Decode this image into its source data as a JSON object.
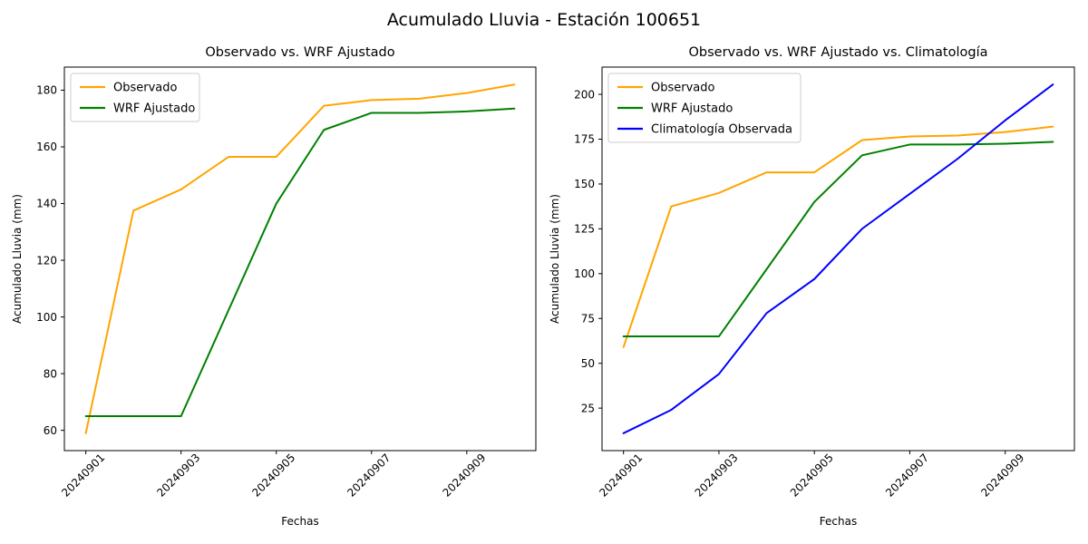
{
  "figure": {
    "title": "Acumulado Lluvia - Estación 100651",
    "background": "#ffffff"
  },
  "chart_data": [
    {
      "type": "line",
      "title": "Observado vs. WRF Ajustado",
      "xlabel": "Fechas",
      "ylabel": "Acumulado Lluvia (mm)",
      "x": [
        "20240901",
        "20240902",
        "20240903",
        "20240904",
        "20240905",
        "20240906",
        "20240907",
        "20240908",
        "20240909",
        "20240910"
      ],
      "xtick_indices": [
        0,
        2,
        4,
        6,
        8
      ],
      "xtick_labels": [
        "20240901",
        "20240903",
        "20240905",
        "20240907",
        "20240909"
      ],
      "xtick_rotation": 45,
      "yticks": [
        60,
        80,
        100,
        120,
        140,
        160,
        180
      ],
      "ylim": [
        52.85,
        188.15
      ],
      "grid": false,
      "legend_position": "upper-left",
      "series": [
        {
          "name": "Observado",
          "color": "#FFA500",
          "values": [
            59,
            137.5,
            145,
            156.5,
            156.5,
            174.5,
            176.5,
            177,
            179,
            182
          ]
        },
        {
          "name": "WRF Ajustado",
          "color": "#008000",
          "values": [
            65,
            65,
            65,
            102.5,
            140,
            166,
            172,
            172,
            172.5,
            173.5
          ]
        }
      ]
    },
    {
      "type": "line",
      "title": "Observado vs. WRF Ajustado vs. Climatología",
      "xlabel": "Fechas",
      "ylabel": "Acumulado Lluvia (mm)",
      "x": [
        "20240901",
        "20240902",
        "20240903",
        "20240904",
        "20240905",
        "20240906",
        "20240907",
        "20240908",
        "20240909",
        "20240910"
      ],
      "xtick_indices": [
        0,
        2,
        4,
        6,
        8
      ],
      "xtick_labels": [
        "20240901",
        "20240903",
        "20240905",
        "20240907",
        "20240909"
      ],
      "xtick_rotation": 45,
      "yticks": [
        25,
        50,
        75,
        100,
        125,
        150,
        175,
        200
      ],
      "ylim": [
        1.3,
        215.2
      ],
      "grid": false,
      "legend_position": "upper-left",
      "series": [
        {
          "name": "Observado",
          "color": "#FFA500",
          "values": [
            59,
            137.5,
            145,
            156.5,
            156.5,
            174.5,
            176.5,
            177,
            179,
            182
          ]
        },
        {
          "name": "WRF Ajustado",
          "color": "#008000",
          "values": [
            65,
            65,
            65,
            102.5,
            140,
            166,
            172,
            172,
            172.5,
            173.5
          ]
        },
        {
          "name": "Climatología Observada",
          "color": "#0000FF",
          "values": [
            11,
            24,
            44,
            78,
            97,
            125,
            144.5,
            164,
            185.5,
            205.5
          ]
        }
      ]
    }
  ]
}
